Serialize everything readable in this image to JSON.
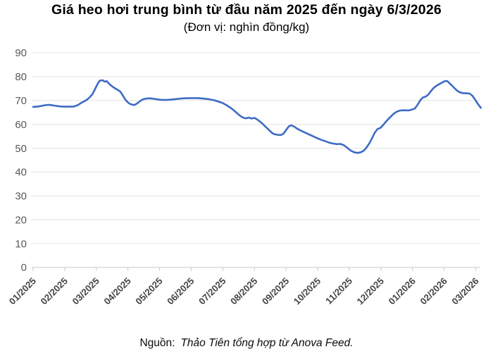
{
  "chart_data": {
    "type": "line",
    "title": "Giá heo hơi trung bình từ đầu năm 2025 đến ngày 6/3/2026",
    "subtitle": "(Đơn vị: nghìn đồng/kg)",
    "xlabel": "",
    "ylabel": "",
    "unit": "nghìn đồng/kg",
    "ylim": [
      0,
      90
    ],
    "yticks": [
      0,
      10,
      20,
      30,
      40,
      50,
      60,
      70,
      80,
      90
    ],
    "x_tick_labels": [
      "01/2025",
      "02/2025",
      "03/2025",
      "04/2025",
      "05/2025",
      "06/2025",
      "07/2025",
      "08/2025",
      "09/2025",
      "10/2025",
      "11/2025",
      "12/2025",
      "01/2026",
      "02/2026",
      "03/2026"
    ],
    "grid": true,
    "legend_position": "none",
    "x_units_note": "x of each point is in month-tick units: 0 = 01/2025 tick, 14 = 03/2026 tick, 14.16 = 6/3/2026",
    "series": [
      {
        "name": "Giá heo hơi trung bình (nghìn đồng/kg)",
        "color": "#3d6bc5",
        "points": [
          [
            0.0,
            67.3
          ],
          [
            0.17,
            67.5
          ],
          [
            0.33,
            67.9
          ],
          [
            0.48,
            68.2
          ],
          [
            0.61,
            68.0
          ],
          [
            0.74,
            67.7
          ],
          [
            0.87,
            67.5
          ],
          [
            1.0,
            67.4
          ],
          [
            1.15,
            67.4
          ],
          [
            1.3,
            67.5
          ],
          [
            1.43,
            68.2
          ],
          [
            1.52,
            69.0
          ],
          [
            1.61,
            69.6
          ],
          [
            1.7,
            70.3
          ],
          [
            1.78,
            71.2
          ],
          [
            1.87,
            72.5
          ],
          [
            1.96,
            74.8
          ],
          [
            2.04,
            77.0
          ],
          [
            2.11,
            78.3
          ],
          [
            2.2,
            78.5
          ],
          [
            2.26,
            77.9
          ],
          [
            2.33,
            78.1
          ],
          [
            2.41,
            76.9
          ],
          [
            2.5,
            75.9
          ],
          [
            2.59,
            75.1
          ],
          [
            2.67,
            74.5
          ],
          [
            2.76,
            73.7
          ],
          [
            2.85,
            71.8
          ],
          [
            2.93,
            70.1
          ],
          [
            3.02,
            68.9
          ],
          [
            3.11,
            68.3
          ],
          [
            3.2,
            68.1
          ],
          [
            3.28,
            68.7
          ],
          [
            3.37,
            69.6
          ],
          [
            3.46,
            70.4
          ],
          [
            3.57,
            70.8
          ],
          [
            3.7,
            70.9
          ],
          [
            3.85,
            70.6
          ],
          [
            4.02,
            70.3
          ],
          [
            4.2,
            70.2
          ],
          [
            4.39,
            70.4
          ],
          [
            4.59,
            70.7
          ],
          [
            4.78,
            70.9
          ],
          [
            5.0,
            71.0
          ],
          [
            5.2,
            71.0
          ],
          [
            5.39,
            70.8
          ],
          [
            5.57,
            70.5
          ],
          [
            5.72,
            70.1
          ],
          [
            5.87,
            69.5
          ],
          [
            6.0,
            68.9
          ],
          [
            6.13,
            67.9
          ],
          [
            6.26,
            66.8
          ],
          [
            6.39,
            65.4
          ],
          [
            6.5,
            64.1
          ],
          [
            6.61,
            63.0
          ],
          [
            6.72,
            62.5
          ],
          [
            6.83,
            62.8
          ],
          [
            6.91,
            62.4
          ],
          [
            7.0,
            62.7
          ],
          [
            7.09,
            62.0
          ],
          [
            7.17,
            61.2
          ],
          [
            7.26,
            60.2
          ],
          [
            7.35,
            59.0
          ],
          [
            7.46,
            57.6
          ],
          [
            7.57,
            56.2
          ],
          [
            7.65,
            55.8
          ],
          [
            7.74,
            55.6
          ],
          [
            7.83,
            55.5
          ],
          [
            7.91,
            56.0
          ],
          [
            8.0,
            57.6
          ],
          [
            8.09,
            59.2
          ],
          [
            8.17,
            59.6
          ],
          [
            8.26,
            59.0
          ],
          [
            8.35,
            58.2
          ],
          [
            8.46,
            57.4
          ],
          [
            8.59,
            56.6
          ],
          [
            8.72,
            55.8
          ],
          [
            8.85,
            55.0
          ],
          [
            8.98,
            54.2
          ],
          [
            9.11,
            53.5
          ],
          [
            9.24,
            52.9
          ],
          [
            9.37,
            52.3
          ],
          [
            9.5,
            51.9
          ],
          [
            9.61,
            51.7
          ],
          [
            9.72,
            51.8
          ],
          [
            9.83,
            51.2
          ],
          [
            9.93,
            50.2
          ],
          [
            10.04,
            49.0
          ],
          [
            10.15,
            48.3
          ],
          [
            10.26,
            48.0
          ],
          [
            10.37,
            48.3
          ],
          [
            10.46,
            49.0
          ],
          [
            10.54,
            50.2
          ],
          [
            10.63,
            52.0
          ],
          [
            10.72,
            54.2
          ],
          [
            10.8,
            56.4
          ],
          [
            10.89,
            58.0
          ],
          [
            10.98,
            58.5
          ],
          [
            11.07,
            59.7
          ],
          [
            11.15,
            61.0
          ],
          [
            11.24,
            62.3
          ],
          [
            11.33,
            63.5
          ],
          [
            11.41,
            64.5
          ],
          [
            11.5,
            65.3
          ],
          [
            11.61,
            65.8
          ],
          [
            11.74,
            65.9
          ],
          [
            11.87,
            65.8
          ],
          [
            11.98,
            66.2
          ],
          [
            12.07,
            66.6
          ],
          [
            12.15,
            68.0
          ],
          [
            12.24,
            70.0
          ],
          [
            12.33,
            71.3
          ],
          [
            12.41,
            71.6
          ],
          [
            12.5,
            72.5
          ],
          [
            12.59,
            74.1
          ],
          [
            12.67,
            75.3
          ],
          [
            12.76,
            76.2
          ],
          [
            12.85,
            76.9
          ],
          [
            12.93,
            77.5
          ],
          [
            13.02,
            78.1
          ],
          [
            13.09,
            78.2
          ],
          [
            13.15,
            77.5
          ],
          [
            13.24,
            76.3
          ],
          [
            13.33,
            75.1
          ],
          [
            13.41,
            74.1
          ],
          [
            13.5,
            73.4
          ],
          [
            13.59,
            73.1
          ],
          [
            13.7,
            73.0
          ],
          [
            13.8,
            72.9
          ],
          [
            13.89,
            72.0
          ],
          [
            13.98,
            70.3
          ],
          [
            14.07,
            68.5
          ],
          [
            14.16,
            66.9
          ]
        ]
      }
    ]
  },
  "source": {
    "prefix": "Nguồn:",
    "text": "Thảo Tiên tổng hợp từ Anova Feed."
  },
  "colors": {
    "line": "#3d6bc5",
    "grid": "#e4e4e4",
    "axis": "#c9c9c9",
    "y_label": "#595959",
    "x_label": "#454545",
    "background": "#ffffff"
  }
}
